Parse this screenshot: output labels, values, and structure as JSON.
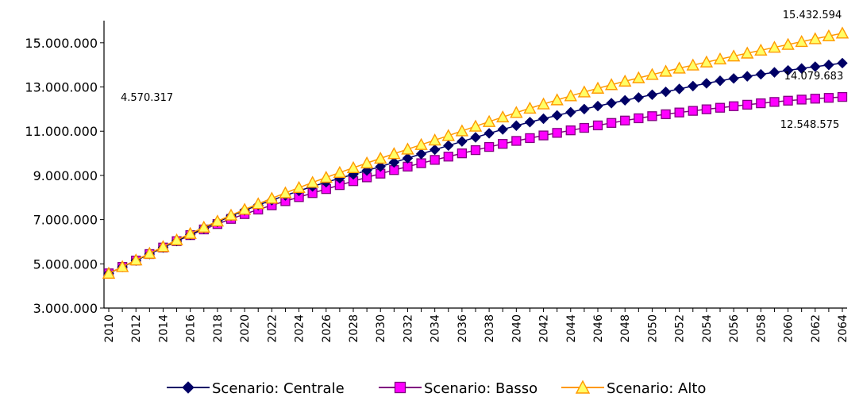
{
  "chart_data": {
    "type": "line",
    "title": "",
    "xlabel": "",
    "ylabel": "",
    "ylim": [
      3000000,
      16000000
    ],
    "y_ticks": [
      3000000,
      5000000,
      7000000,
      9000000,
      11000000,
      13000000,
      15000000
    ],
    "y_tick_labels": [
      "3.000.000",
      "5.000.000",
      "7.000.000",
      "9.000.000",
      "11.000.000",
      "13.000.000",
      "15.000.000"
    ],
    "x_start": 2010,
    "x_end": 2064,
    "x_tick_labels": [
      "2010",
      "2012",
      "2014",
      "2016",
      "2018",
      "2020",
      "2022",
      "2024",
      "2026",
      "2028",
      "2030",
      "2032",
      "2034",
      "2036",
      "2038",
      "2040",
      "2042",
      "2044",
      "2046",
      "2048",
      "2050",
      "2052",
      "2054",
      "2056",
      "2058",
      "2060",
      "2062",
      "2064"
    ],
    "grid": false,
    "legend_position": "bottom",
    "series": [
      {
        "name": "Scenario: Centrale",
        "color": "#000066",
        "marker": "diamond",
        "keypoints": [
          [
            2010,
            4570317
          ],
          [
            2012,
            5150000
          ],
          [
            2016,
            6320000
          ],
          [
            2020,
            7420000
          ],
          [
            2025,
            8500000
          ],
          [
            2030,
            9400000
          ],
          [
            2035,
            10350000
          ],
          [
            2040,
            11250000
          ],
          [
            2045,
            12000000
          ],
          [
            2050,
            12650000
          ],
          [
            2055,
            13280000
          ],
          [
            2060,
            13750000
          ],
          [
            2064,
            14079683
          ]
        ]
      },
      {
        "name": "Scenario: Basso",
        "color": "#FF00FF",
        "marker": "square",
        "keypoints": [
          [
            2010,
            4570317
          ],
          [
            2012,
            5150000
          ],
          [
            2016,
            6300000
          ],
          [
            2020,
            7250000
          ],
          [
            2025,
            8200000
          ],
          [
            2030,
            9080000
          ],
          [
            2035,
            9850000
          ],
          [
            2040,
            10560000
          ],
          [
            2045,
            11150000
          ],
          [
            2050,
            11680000
          ],
          [
            2055,
            12060000
          ],
          [
            2060,
            12380000
          ],
          [
            2064,
            12548575
          ]
        ]
      },
      {
        "name": "Scenario: Alto",
        "color": "#FFCC00",
        "marker": "triangle",
        "keypoints": [
          [
            2010,
            4570317
          ],
          [
            2012,
            5170000
          ],
          [
            2016,
            6370000
          ],
          [
            2020,
            7460000
          ],
          [
            2025,
            8680000
          ],
          [
            2030,
            9770000
          ],
          [
            2035,
            10800000
          ],
          [
            2040,
            11840000
          ],
          [
            2045,
            12770000
          ],
          [
            2050,
            13560000
          ],
          [
            2055,
            14260000
          ],
          [
            2060,
            14920000
          ],
          [
            2064,
            15432594
          ]
        ]
      }
    ],
    "annotations": [
      {
        "text": "4.570.317",
        "x": 2010,
        "y": 4570317
      },
      {
        "text": "15.432.594",
        "x": 2064,
        "y": 15432594
      },
      {
        "text": "14.079.683",
        "x": 2064,
        "y": 14079683
      },
      {
        "text": "12.548.575",
        "x": 2064,
        "y": 12548575
      }
    ]
  }
}
